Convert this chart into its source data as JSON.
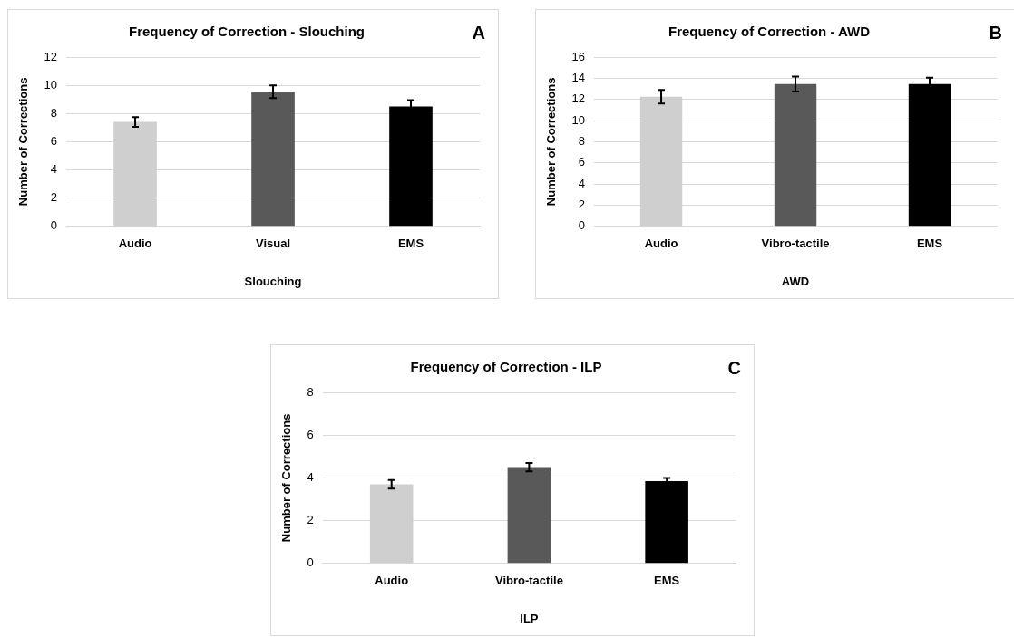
{
  "chart_data": [
    {
      "type": "bar",
      "title": "Frequency of Correction - Slouching",
      "xlabel": "Slouching",
      "ylabel": "Number of Corrections",
      "annotations": [
        "A"
      ],
      "categories": [
        "Audio",
        "Visual",
        "EMS"
      ],
      "values": [
        7.4,
        9.55,
        8.5
      ],
      "errors": [
        0.35,
        0.45,
        0.45
      ],
      "colors": [
        "#d0cfd0",
        "#595959",
        "#000000"
      ],
      "ylim": [
        0,
        12
      ],
      "yticks": [
        0,
        2,
        4,
        6,
        8,
        10,
        12
      ],
      "grid": "y"
    },
    {
      "type": "bar",
      "title": "Frequency of Correction - AWD",
      "xlabel": "AWD",
      "ylabel": "Number of Corrections",
      "annotations": [
        "B"
      ],
      "categories": [
        "Audio",
        "Vibro-tactile",
        "EMS"
      ],
      "values": [
        12.25,
        13.45,
        13.45
      ],
      "errors": [
        0.65,
        0.7,
        0.6
      ],
      "colors": [
        "#d0cfd0",
        "#595959",
        "#000000"
      ],
      "ylim": [
        0,
        16
      ],
      "yticks": [
        0,
        2,
        4,
        6,
        8,
        10,
        12,
        14,
        16
      ],
      "grid": "y"
    },
    {
      "type": "bar",
      "title": "Frequency of Correction - ILP",
      "xlabel": "ILP",
      "ylabel": "Number of Corrections",
      "annotations": [
        "C"
      ],
      "categories": [
        "Audio",
        "Vibro-tactile",
        "EMS"
      ],
      "values": [
        3.7,
        4.5,
        3.85
      ],
      "errors": [
        0.2,
        0.2,
        0.15
      ],
      "colors": [
        "#d0cfd0",
        "#595959",
        "#000000"
      ],
      "ylim": [
        0,
        8
      ],
      "yticks": [
        0,
        2,
        4,
        6,
        8
      ],
      "grid": "y"
    }
  ]
}
